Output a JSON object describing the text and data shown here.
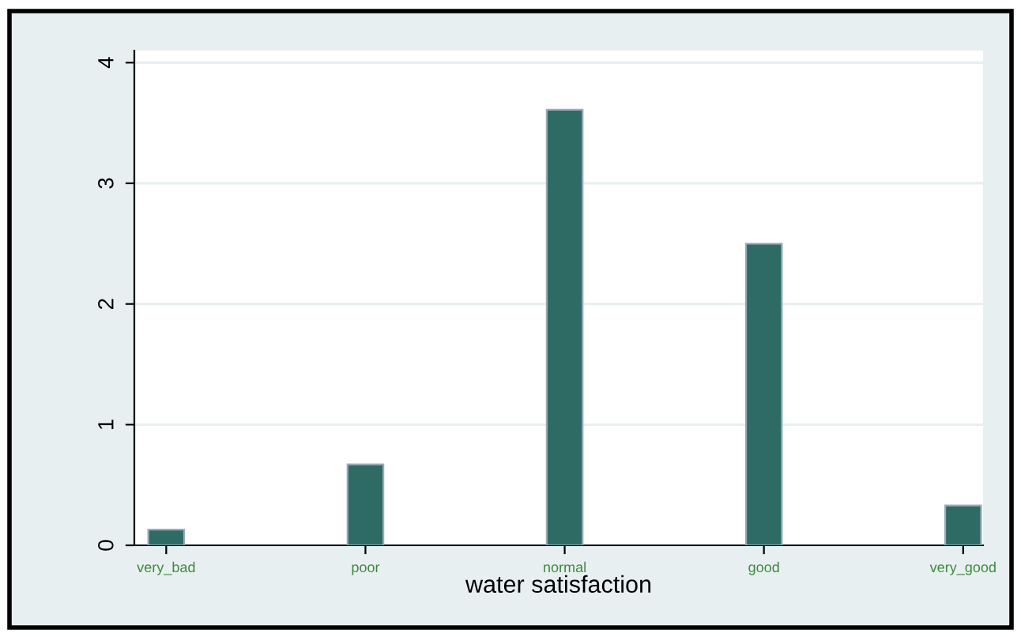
{
  "chart_data": {
    "type": "bar",
    "xlabel": "water satisfaction",
    "categories": [
      "very_bad",
      "poor",
      "normal",
      "good",
      "very_good"
    ],
    "values": [
      0.13,
      0.67,
      3.61,
      2.5,
      0.33
    ],
    "color": "#2e6b64",
    "ylim": [
      0,
      4.1
    ],
    "yticks": [
      0,
      1,
      2,
      3,
      4
    ],
    "grid": "y"
  }
}
